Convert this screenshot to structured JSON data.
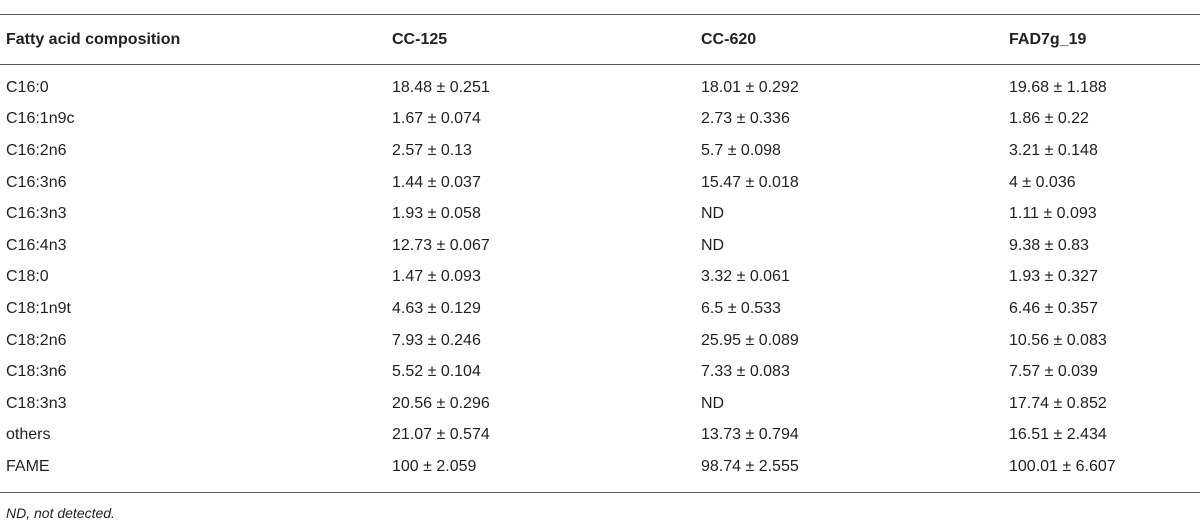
{
  "table": {
    "headers": [
      "Fatty acid composition",
      "CC-125",
      "CC-620",
      "FAD7g_19"
    ],
    "rows": [
      [
        "C16:0",
        "18.48 ± 0.251",
        "18.01 ± 0.292",
        "19.68 ± 1.188"
      ],
      [
        "C16:1n9c",
        "1.67 ± 0.074",
        "2.73 ± 0.336",
        "1.86 ± 0.22"
      ],
      [
        "C16:2n6",
        "2.57 ± 0.13",
        "5.7 ± 0.098",
        "3.21 ± 0.148"
      ],
      [
        "C16:3n6",
        "1.44 ± 0.037",
        "15.47 ± 0.018",
        "4 ± 0.036"
      ],
      [
        "C16:3n3",
        "1.93 ± 0.058",
        "ND",
        "1.11 ± 0.093"
      ],
      [
        "C16:4n3",
        "12.73 ± 0.067",
        "ND",
        "9.38 ± 0.83"
      ],
      [
        "C18:0",
        "1.47 ± 0.093",
        "3.32 ± 0.061",
        "1.93 ± 0.327"
      ],
      [
        "C18:1n9t",
        "4.63 ± 0.129",
        "6.5 ± 0.533",
        "6.46 ± 0.357"
      ],
      [
        "C18:2n6",
        "7.93 ± 0.246",
        "25.95 ± 0.089",
        "10.56 ± 0.083"
      ],
      [
        "C18:3n6",
        "5.52 ± 0.104",
        "7.33 ± 0.083",
        "7.57 ± 0.039"
      ],
      [
        "C18:3n3",
        "20.56 ± 0.296",
        "ND",
        "17.74 ± 0.852"
      ],
      [
        "others",
        "21.07 ± 0.574",
        "13.73 ± 0.794",
        "16.51 ± 2.434"
      ],
      [
        "FAME",
        "100 ± 2.059",
        "98.74 ± 2.555",
        "100.01 ± 6.607"
      ]
    ]
  },
  "footnote": "ND, not detected."
}
